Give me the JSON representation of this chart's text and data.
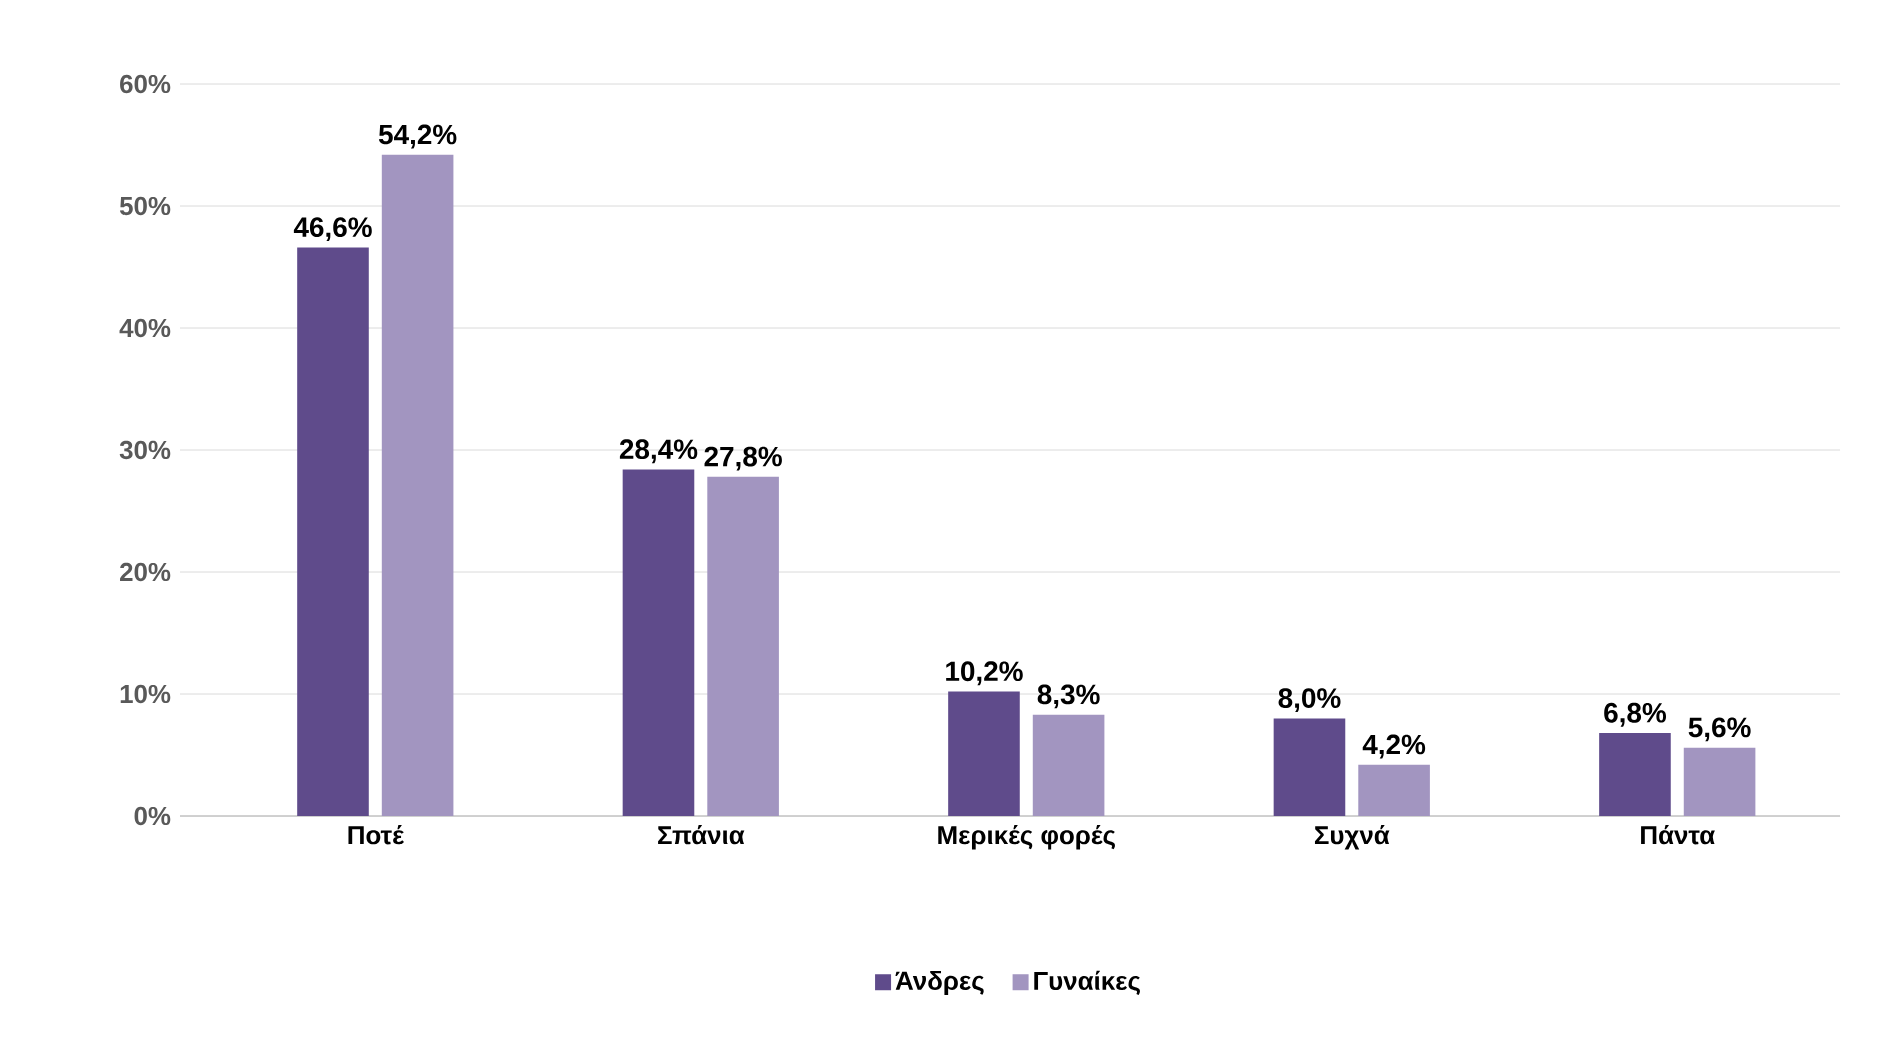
{
  "chart_data": {
    "type": "bar",
    "categories": [
      "Ποτέ",
      "Σπάνια",
      "Μερικές φορές",
      "Συχνά",
      "Πάντα"
    ],
    "series": [
      {
        "name": "Άνδρες",
        "color": "#5f4b8b",
        "values": [
          46.6,
          28.4,
          10.2,
          8.0,
          6.8
        ],
        "value_labels": [
          "46,6%",
          "28,4%",
          "10,2%",
          "8,0%",
          "6,8%"
        ]
      },
      {
        "name": "Γυναίκες",
        "color": "#a295c0",
        "values": [
          54.2,
          27.8,
          8.3,
          4.2,
          5.6
        ],
        "value_labels": [
          "54,2%",
          "27,8%",
          "8,3%",
          "4,2%",
          "5,6%"
        ]
      }
    ],
    "ylim": [
      0,
      60
    ],
    "yticks": [
      {
        "value": 0,
        "label": "0%"
      },
      {
        "value": 10,
        "label": "10%"
      },
      {
        "value": 20,
        "label": "20%"
      },
      {
        "value": 30,
        "label": "30%"
      },
      {
        "value": 40,
        "label": "40%"
      },
      {
        "value": 50,
        "label": "50%"
      },
      {
        "value": 60,
        "label": "60%"
      }
    ],
    "grid": "y",
    "legend": "bottom"
  }
}
